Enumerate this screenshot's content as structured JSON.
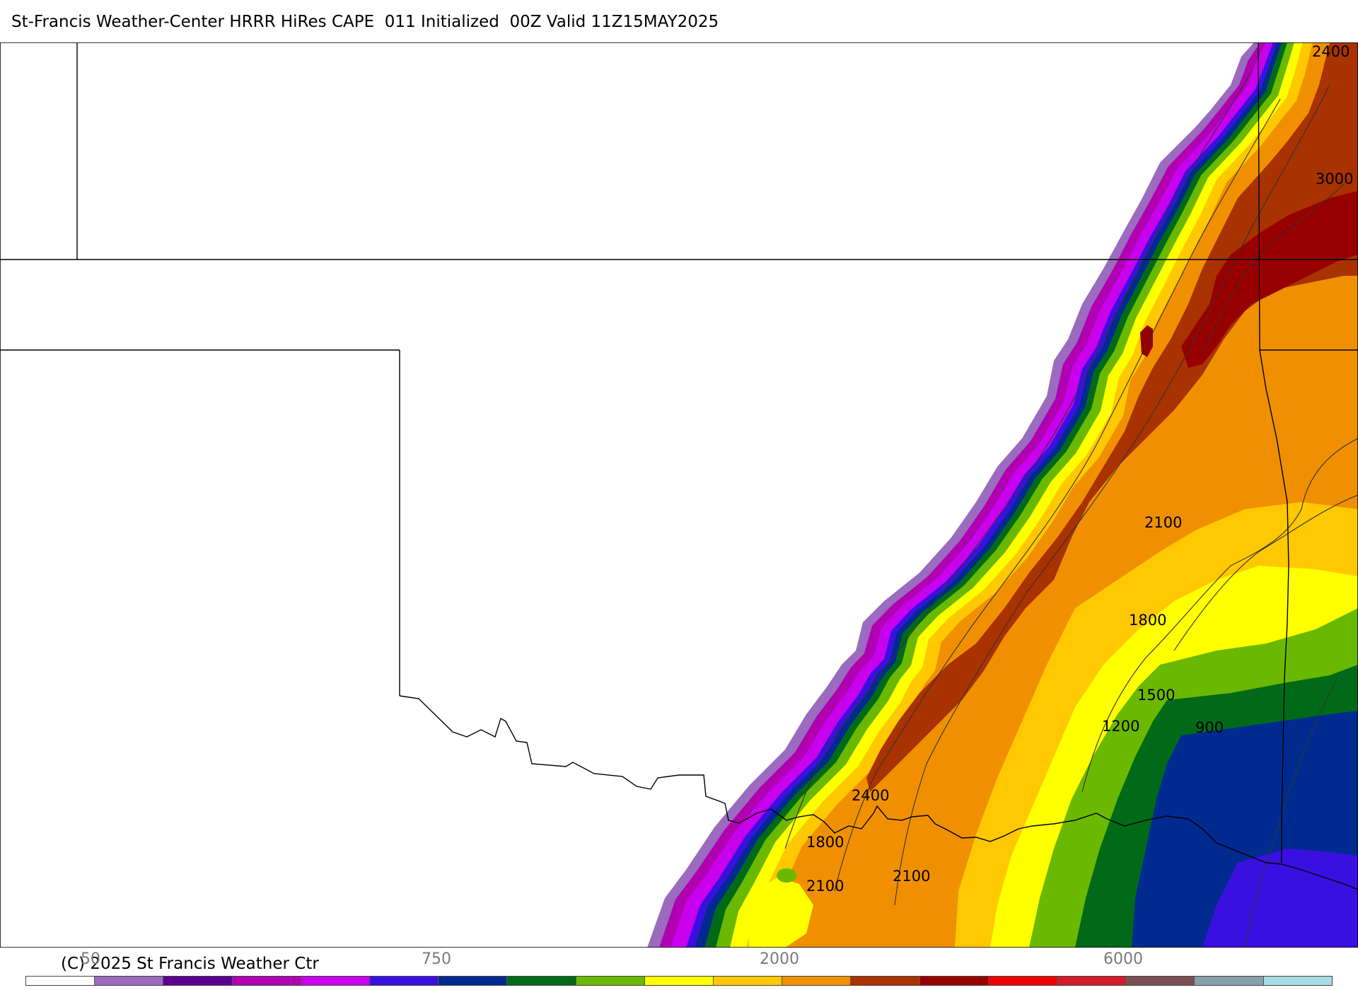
{
  "title": "St-Francis Weather-Center HRRR HiRes CAPE  011 Initialized  00Z Valid 11Z15MAY2025",
  "copyright": "(C) 2025 St Francis Weather Ctr",
  "colorbar": {
    "tick_labels": [
      "50",
      "750",
      "2000",
      "6000"
    ],
    "colors": [
      "#ffffff",
      "#9a6bbf",
      "#5b0090",
      "#b000b0",
      "#c800ee",
      "#3a10e0",
      "#002a90",
      "#006a18",
      "#6ab800",
      "#ffff00",
      "#ffc800",
      "#f09000",
      "#a83200",
      "#980000",
      "#ee0000",
      "#d01c2c",
      "#7a5055",
      "#88a0a8",
      "#a8dce6"
    ]
  },
  "contour_labels": [
    "2400",
    "3000",
    "2100",
    "1800",
    "1500",
    "1200",
    "900",
    "2400",
    "1800",
    "2100",
    "2100"
  ],
  "map_colors": {
    "band_purple_light": "#9a6bbf",
    "band_purple": "#b000b0",
    "band_magenta": "#c800ee",
    "band_blue": "#3a10e0",
    "band_navy": "#002a90",
    "band_green_dark": "#006a18",
    "band_green": "#6ab800",
    "band_yellow": "#ffff00",
    "band_gold": "#ffc800",
    "band_orange": "#f09000",
    "band_rust": "#a83200",
    "band_maroon": "#980000"
  }
}
